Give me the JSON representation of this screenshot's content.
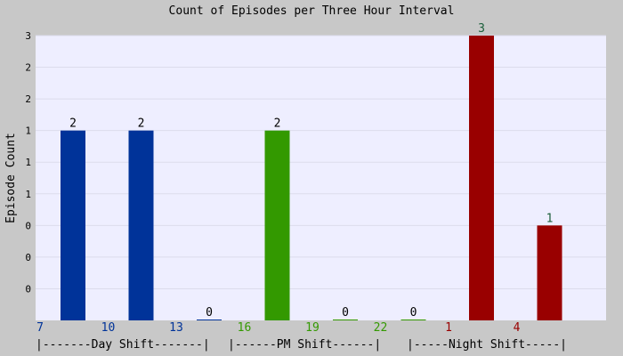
{
  "chart_data": {
    "type": "bar",
    "title": "Count of Episodes per Three Hour Interval",
    "ylabel": "Episode Count",
    "ylim": [
      0,
      3
    ],
    "y_tick_labels": [
      "0",
      "0",
      "0",
      "1",
      "1",
      "1",
      "2",
      "2",
      "3"
    ],
    "grid": true,
    "categories": [
      "7",
      "10",
      "13",
      "16",
      "19",
      "22",
      "1",
      "4"
    ],
    "values": [
      2,
      2,
      0,
      2,
      0,
      0,
      3,
      1
    ],
    "shifts": [
      {
        "label": "|-------Day Shift-------|",
        "color": "#003399"
      },
      {
        "label": "|------PM Shift------|",
        "color": "#339900"
      },
      {
        "label": "|-----Night Shift-----|",
        "color": "#990000"
      }
    ]
  }
}
